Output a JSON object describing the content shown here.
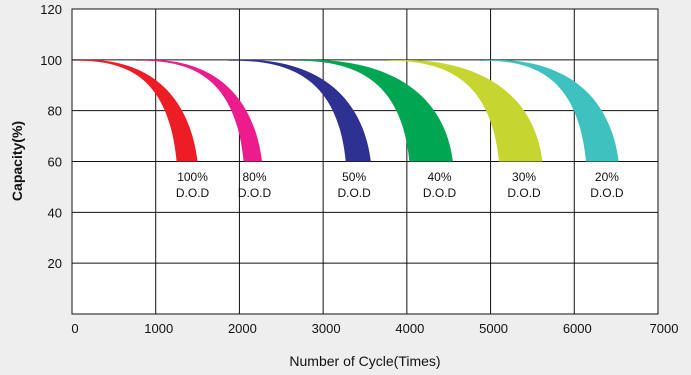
{
  "chart_data": {
    "type": "area",
    "xlabel": "Number of Cycle(Times)",
    "ylabel": "Capacity(%)",
    "xlim": [
      0,
      7000
    ],
    "ylim": [
      0,
      120
    ],
    "x_ticks": [
      {
        "value": 0,
        "label": "0"
      },
      {
        "value": 1000,
        "label": "1000"
      },
      {
        "value": 2000,
        "label": "2000"
      },
      {
        "value": 3000,
        "label": "3000"
      },
      {
        "value": 4000,
        "label": "4000"
      },
      {
        "value": 5000,
        "label": "5000"
      },
      {
        "value": 6000,
        "label": "6000"
      },
      {
        "value": 7000,
        "label": "7000"
      }
    ],
    "y_ticks": [
      {
        "value": 20,
        "label": "20"
      },
      {
        "value": 40,
        "label": "40"
      },
      {
        "value": 60,
        "label": "60"
      },
      {
        "value": 80,
        "label": "80"
      },
      {
        "value": 100,
        "label": "100"
      },
      {
        "value": 120,
        "label": "120"
      }
    ],
    "grid": true,
    "series": [
      {
        "label_pct": "100%",
        "label_dod": "D.O.D",
        "color": "#ee1c25",
        "start": 0,
        "left_end": 1250,
        "right_end": 1500,
        "label_x": 1440
      },
      {
        "label_pct": "80%",
        "label_dod": "D.O.D",
        "color": "#ec1c8c",
        "start": 750,
        "left_end": 2050,
        "right_end": 2270,
        "label_x": 2180
      },
      {
        "label_pct": "50%",
        "label_dod": "D.O.D",
        "color": "#2e3192",
        "start": 1850,
        "left_end": 3270,
        "right_end": 3570,
        "label_x": 3370
      },
      {
        "label_pct": "40%",
        "label_dod": "D.O.D",
        "color": "#00a651",
        "start": 2600,
        "left_end": 4030,
        "right_end": 4550,
        "label_x": 4390
      },
      {
        "label_pct": "30%",
        "label_dod": "D.O.D",
        "color": "#c7d530",
        "start": 3700,
        "left_end": 5100,
        "right_end": 5620,
        "label_x": 5400
      },
      {
        "label_pct": "20%",
        "label_dod": "D.O.D",
        "color": "#3fc1c0",
        "start": 4850,
        "left_end": 6140,
        "right_end": 6530,
        "label_x": 6390
      }
    ]
  }
}
